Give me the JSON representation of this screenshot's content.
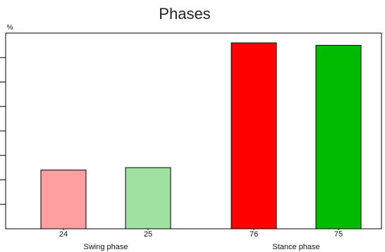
{
  "chart_data": {
    "type": "bar",
    "title": "Phases",
    "ylabel": "%",
    "xlabel": "",
    "ylim": [
      0,
      80
    ],
    "grid": false,
    "groups": [
      {
        "label": "Swing phase",
        "bars": [
          {
            "value": 24,
            "label": "24",
            "color": "#ff9f9f"
          },
          {
            "value": 25,
            "label": "25",
            "color": "#a0e0a0"
          }
        ]
      },
      {
        "label": "Stance phase",
        "bars": [
          {
            "value": 76,
            "label": "76",
            "color": "#ff0000"
          },
          {
            "value": 75,
            "label": "75",
            "color": "#00bb00"
          }
        ]
      }
    ]
  }
}
